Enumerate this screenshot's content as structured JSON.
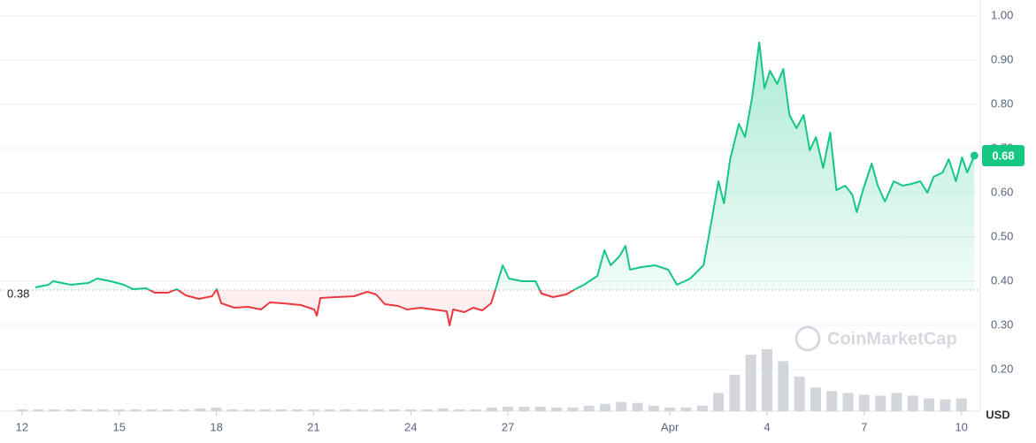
{
  "chart_data": {
    "type": "line",
    "x": [
      0.41,
      0.82,
      0.96,
      1.5,
      2.05,
      2.32,
      2.73,
      3.14,
      3.42,
      3.83,
      4.1,
      4.51,
      4.78,
      5.05,
      5.46,
      5.87,
      6.01,
      6.15,
      6.56,
      6.97,
      7.38,
      7.65,
      8.06,
      8.61,
      9.02,
      9.1,
      9.21,
      9.7,
      10.25,
      10.66,
      10.93,
      11.2,
      11.61,
      11.89,
      12.3,
      12.7,
      13.11,
      13.2,
      13.31,
      13.66,
      13.93,
      14.21,
      14.48,
      14.62,
      14.84,
      15.03,
      15.44,
      15.85,
      16.04,
      16.39,
      16.8,
      17.08,
      17.35,
      17.76,
      17.98,
      18.17,
      18.44,
      18.63,
      18.77,
      19.13,
      19.54,
      19.95,
      20.22,
      20.63,
      21.04,
      21.26,
      21.5,
      21.67,
      21.86,
      22.13,
      22.32,
      22.54,
      22.76,
      22.92,
      23.09,
      23.31,
      23.5,
      23.69,
      23.91,
      24.13,
      24.32,
      24.51,
      24.73,
      24.95,
      25.14,
      25.41,
      25.63,
      25.77,
      25.96,
      26.23,
      26.42,
      26.64,
      26.91,
      27.19,
      27.46,
      27.73,
      27.95,
      28.14,
      28.42,
      28.61,
      28.83,
      29.02,
      29.18,
      29.4
    ],
    "values": [
      0.386,
      0.392,
      0.4,
      0.392,
      0.396,
      0.406,
      0.4,
      0.392,
      0.382,
      0.384,
      0.374,
      0.374,
      0.382,
      0.368,
      0.36,
      0.366,
      0.382,
      0.35,
      0.34,
      0.342,
      0.336,
      0.352,
      0.35,
      0.346,
      0.336,
      0.322,
      0.362,
      0.364,
      0.366,
      0.376,
      0.37,
      0.348,
      0.344,
      0.336,
      0.34,
      0.336,
      0.332,
      0.3,
      0.336,
      0.33,
      0.34,
      0.334,
      0.35,
      0.382,
      0.436,
      0.406,
      0.4,
      0.4,
      0.372,
      0.364,
      0.37,
      0.382,
      0.392,
      0.412,
      0.47,
      0.436,
      0.456,
      0.48,
      0.426,
      0.432,
      0.436,
      0.426,
      0.392,
      0.406,
      0.436,
      0.526,
      0.626,
      0.576,
      0.676,
      0.756,
      0.726,
      0.816,
      0.94,
      0.836,
      0.876,
      0.846,
      0.88,
      0.776,
      0.746,
      0.776,
      0.696,
      0.726,
      0.656,
      0.736,
      0.606,
      0.616,
      0.596,
      0.556,
      0.606,
      0.666,
      0.616,
      0.58,
      0.626,
      0.616,
      0.62,
      0.626,
      0.6,
      0.636,
      0.646,
      0.676,
      0.626,
      0.68,
      0.646,
      0.684
    ],
    "last_label": "0.68",
    "baseline": 0.38,
    "up_color": "#16c784",
    "down_color": "#ea3943",
    "volume": {
      "x": [
        0,
        0.5,
        1,
        1.5,
        2,
        2.5,
        3,
        3.5,
        4,
        4.5,
        5,
        5.5,
        6,
        6.5,
        7,
        7.5,
        8,
        8.5,
        9,
        9.5,
        10,
        10.5,
        11,
        11.5,
        12,
        12.5,
        13,
        13.5,
        14,
        14.5,
        15,
        15.5,
        16,
        16.5,
        17,
        17.5,
        18,
        18.5,
        19,
        19.5,
        20,
        20.5,
        21,
        21.5,
        22,
        22.5,
        23,
        23.5,
        24,
        24.5,
        25,
        25.5,
        26,
        26.5,
        27,
        27.5,
        28,
        28.5,
        29
      ],
      "values": [
        2,
        2,
        2,
        2,
        2,
        2,
        2,
        2,
        2,
        2,
        2,
        3,
        4,
        2,
        2,
        2,
        2,
        2,
        2,
        2,
        2,
        2,
        2,
        2,
        2,
        2,
        3,
        2,
        2,
        4,
        5,
        5,
        5,
        4,
        4,
        6,
        8,
        10,
        9,
        6,
        4,
        4,
        6,
        20,
        40,
        62,
        68,
        55,
        38,
        26,
        22,
        20,
        18,
        17,
        20,
        17,
        14,
        13,
        14
      ],
      "color": "#c8ccd2"
    },
    "xlim": [
      -0.68,
      29.5
    ],
    "ylim": [
      0.1,
      1.036
    ],
    "xticks": [
      {
        "value": 0,
        "label": "12"
      },
      {
        "value": 3,
        "label": "15"
      },
      {
        "value": 6,
        "label": "18"
      },
      {
        "value": 9,
        "label": "21"
      },
      {
        "value": 12,
        "label": "24"
      },
      {
        "value": 15,
        "label": "27"
      },
      {
        "value": 20,
        "label": "Apr"
      },
      {
        "value": 23,
        "label": "4"
      },
      {
        "value": 26,
        "label": "7"
      },
      {
        "value": 29,
        "label": "10"
      }
    ],
    "yticks": [
      {
        "value": 0.2,
        "label": "0.20"
      },
      {
        "value": 0.3,
        "label": "0.30"
      },
      {
        "value": 0.4,
        "label": "0.40"
      },
      {
        "value": 0.5,
        "label": "0.50"
      },
      {
        "value": 0.6,
        "label": "0.60"
      },
      {
        "value": 0.7,
        "label": "0.70"
      },
      {
        "value": 0.8,
        "label": "0.80"
      },
      {
        "value": 0.9,
        "label": "0.90"
      },
      {
        "value": 1.0,
        "label": "1.00"
      }
    ],
    "y_unit": "USD",
    "watermark": "CoinMarketCap",
    "grid": true
  }
}
